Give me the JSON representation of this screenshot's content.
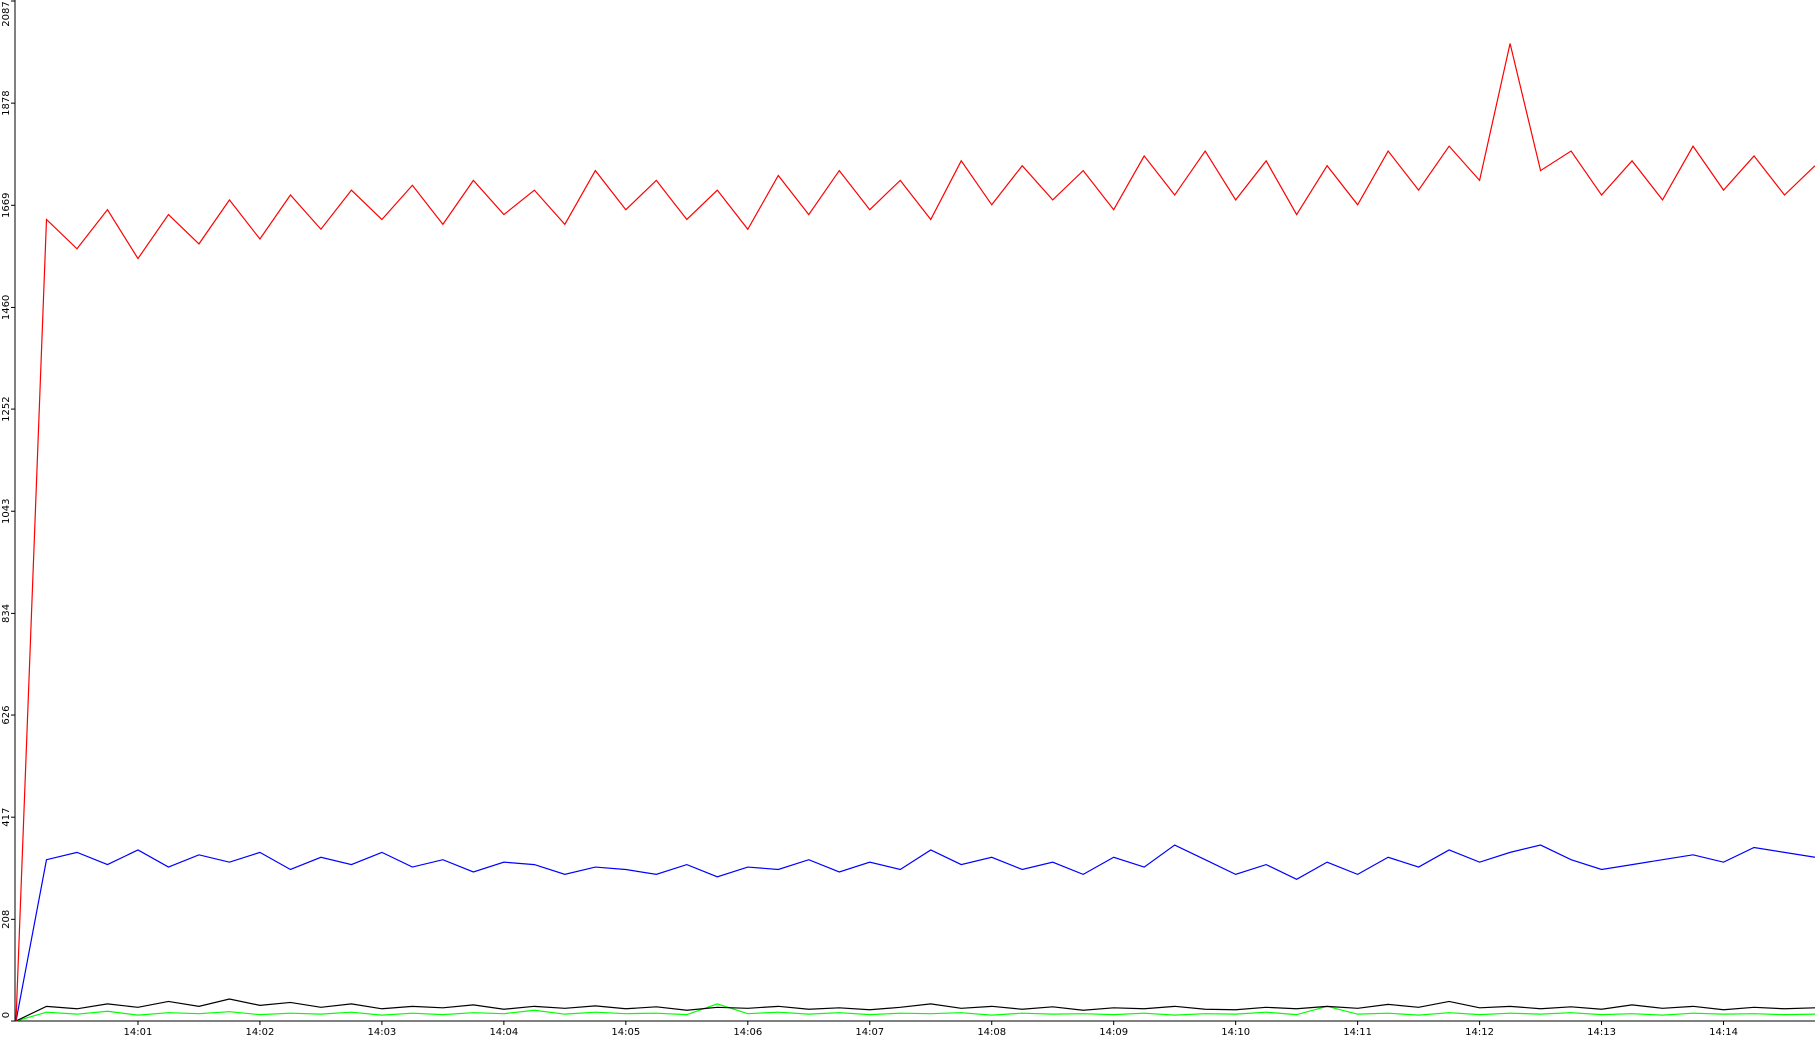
{
  "chart_data": {
    "type": "line",
    "categories": [
      null,
      null,
      null,
      null,
      "14:01",
      null,
      null,
      null,
      "14:02",
      null,
      null,
      null,
      "14:03",
      null,
      null,
      null,
      "14:04",
      null,
      null,
      null,
      "14:05",
      null,
      null,
      null,
      "14:06",
      null,
      null,
      null,
      "14:07",
      null,
      null,
      null,
      "14:08",
      null,
      null,
      null,
      "14:09",
      null,
      null,
      null,
      "14:10",
      null,
      null,
      null,
      "14:11",
      null,
      null,
      null,
      "14:12",
      null,
      null,
      null,
      "14:13",
      null,
      null,
      null,
      "14:14",
      null,
      null,
      null
    ],
    "series": [
      {
        "color": "#ff0000",
        "values": [
          0,
          1640,
          1580,
          1660,
          1560,
          1650,
          1590,
          1680,
          1600,
          1690,
          1620,
          1700,
          1640,
          1710,
          1630,
          1720,
          1650,
          1700,
          1630,
          1740,
          1660,
          1720,
          1640,
          1700,
          1620,
          1730,
          1650,
          1740,
          1660,
          1720,
          1640,
          1760,
          1670,
          1750,
          1680,
          1740,
          1660,
          1770,
          1690,
          1780,
          1680,
          1760,
          1650,
          1750,
          1670,
          1780,
          1700,
          1790,
          1720,
          2000,
          1740,
          1780,
          1690,
          1760,
          1680,
          1790,
          1700,
          1770,
          1690,
          1750
        ]
      },
      {
        "color": "#0000ff",
        "values": [
          0,
          330,
          345,
          320,
          350,
          315,
          340,
          325,
          345,
          310,
          335,
          320,
          345,
          315,
          330,
          305,
          325,
          320,
          300,
          315,
          310,
          300,
          320,
          295,
          315,
          310,
          330,
          305,
          325,
          310,
          350,
          320,
          335,
          310,
          325,
          300,
          335,
          315,
          360,
          330,
          300,
          320,
          290,
          325,
          300,
          335,
          315,
          350,
          325,
          345,
          360,
          330,
          310,
          320,
          330,
          340,
          325,
          355,
          345,
          335
        ]
      },
      {
        "color": "#000000",
        "values": [
          0,
          30,
          25,
          35,
          28,
          40,
          30,
          45,
          32,
          38,
          28,
          35,
          25,
          30,
          27,
          33,
          24,
          30,
          26,
          31,
          25,
          29,
          22,
          28,
          26,
          30,
          24,
          27,
          23,
          28,
          35,
          26,
          30,
          24,
          29,
          22,
          27,
          25,
          30,
          24,
          23,
          28,
          25,
          30,
          26,
          34,
          28,
          40,
          27,
          30,
          25,
          29,
          24,
          33,
          26,
          30,
          23,
          28,
          25,
          27
        ]
      },
      {
        "color": "#00ff00",
        "values": [
          0,
          18,
          14,
          20,
          12,
          17,
          15,
          19,
          13,
          16,
          14,
          18,
          12,
          16,
          13,
          17,
          15,
          22,
          14,
          18,
          15,
          16,
          13,
          35,
          15,
          18,
          14,
          17,
          13,
          16,
          15,
          17,
          12,
          16,
          14,
          15,
          13,
          16,
          12,
          15,
          14,
          18,
          13,
          30,
          14,
          16,
          12,
          17,
          13,
          16,
          14,
          17,
          13,
          15,
          12,
          16,
          14,
          15,
          13,
          14
        ]
      }
    ],
    "ylim": [
      0,
      2087
    ],
    "yticks": [
      0,
      208,
      417,
      626,
      834,
      1043,
      1252,
      1460,
      1669,
      1878,
      2087
    ]
  }
}
